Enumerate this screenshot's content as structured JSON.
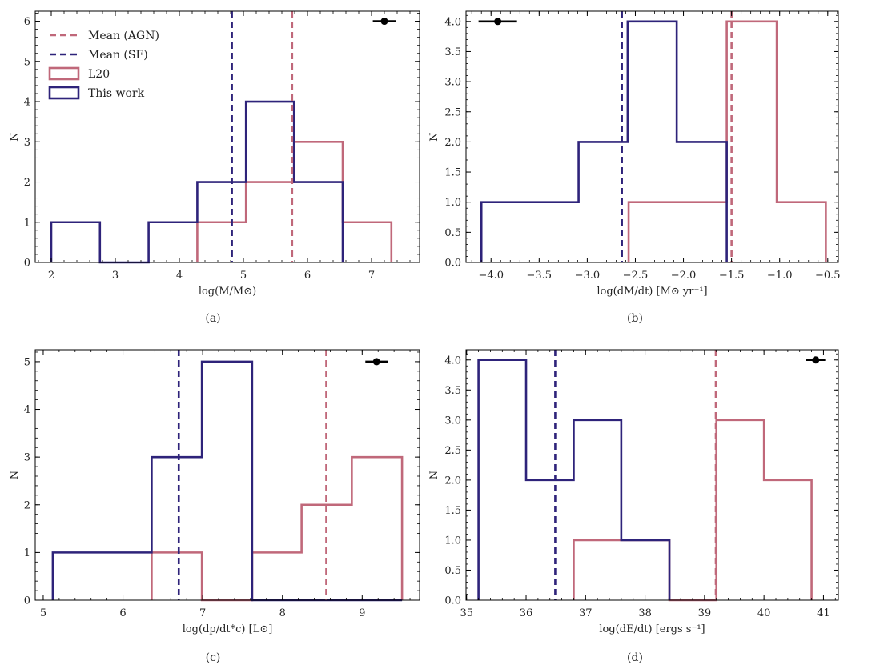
{
  "colors": {
    "agn": "#c0687a",
    "sf": "#2e237a",
    "marker": "#000000"
  },
  "legend": {
    "mean_agn": "Mean (AGN)",
    "mean_sf": "Mean (SF)",
    "l20": "L20",
    "this_work": "This work"
  },
  "chart_data": [
    {
      "type": "histogram",
      "panel": "(a)",
      "xlabel": "log(M/M⊙)",
      "ylabel": "N",
      "xlim": [
        1.75,
        7.75
      ],
      "ylim": [
        0,
        6.25
      ],
      "xticks": [
        2,
        3,
        4,
        5,
        6,
        7
      ],
      "yticks": [
        0,
        1,
        2,
        3,
        4,
        5,
        6
      ],
      "ytick_labels": [
        "0",
        "1",
        "2",
        "3",
        "4",
        "5",
        "6"
      ],
      "series": [
        {
          "name": "This work",
          "edges": [
            2.0,
            2.76,
            3.52,
            4.28,
            5.04,
            5.79,
            6.55
          ],
          "counts": [
            1,
            0,
            1,
            2,
            4,
            2
          ]
        },
        {
          "name": "L20",
          "edges": [
            4.28,
            5.04,
            5.79,
            6.55,
            7.31
          ],
          "counts": [
            1,
            2,
            3,
            1
          ]
        }
      ],
      "mean_lines": [
        {
          "name": "Mean (AGN)",
          "x": 5.76
        },
        {
          "name": "Mean (SF)",
          "x": 4.82
        }
      ],
      "errorbar": {
        "x": 7.2,
        "y": 6.0,
        "xerr": 0.18
      },
      "legend_position": "upper-left"
    },
    {
      "type": "histogram",
      "panel": "(b)",
      "xlabel": "log(dM/dt) [M⊙ yr⁻¹]",
      "ylabel": "N",
      "xlim": [
        -4.26,
        -0.39
      ],
      "ylim": [
        0,
        4.17
      ],
      "xticks": [
        -4.0,
        -3.5,
        -3.0,
        -2.5,
        -2.0,
        -1.5,
        -1.0,
        -0.5
      ],
      "xtick_labels": [
        "−4.0",
        "−3.5",
        "−3.0",
        "−2.5",
        "−2.0",
        "−1.5",
        "−1.0",
        "−0.5"
      ],
      "yticks": [
        0,
        0.5,
        1.0,
        1.5,
        2.0,
        2.5,
        3.0,
        3.5,
        4.0
      ],
      "ytick_labels": [
        "0.0",
        "0.5",
        "1.0",
        "1.5",
        "2.0",
        "2.5",
        "3.0",
        "3.5",
        "4.0"
      ],
      "series": [
        {
          "name": "This work",
          "edges": [
            -4.1,
            -3.09,
            -2.58,
            -2.07,
            -1.55
          ],
          "counts": [
            1,
            2,
            4,
            2
          ]
        },
        {
          "name": "L20",
          "edges": [
            -2.57,
            -1.55,
            -1.03,
            -0.52
          ],
          "counts": [
            1,
            4,
            1
          ]
        }
      ],
      "mean_lines": [
        {
          "name": "Mean (AGN)",
          "x": -1.5
        },
        {
          "name": "Mean (SF)",
          "x": -2.64
        }
      ],
      "errorbar": {
        "x": -3.93,
        "y": 4.0,
        "xerr": 0.2
      }
    },
    {
      "type": "histogram",
      "panel": "(c)",
      "xlabel": "log(dp/dt*c) [L⊙]",
      "ylabel": "N",
      "xlim": [
        4.9,
        9.72
      ],
      "ylim": [
        0,
        5.25
      ],
      "xticks": [
        5,
        6,
        7,
        8,
        9
      ],
      "yticks": [
        0,
        1,
        2,
        3,
        4,
        5
      ],
      "ytick_labels": [
        "0",
        "1",
        "2",
        "3",
        "4",
        "5"
      ],
      "series": [
        {
          "name": "This work",
          "edges": [
            5.12,
            6.36,
            6.99,
            7.62,
            9.5
          ],
          "counts": [
            1,
            3,
            5,
            0
          ]
        },
        {
          "name": "L20",
          "edges": [
            6.36,
            6.99,
            7.62,
            8.24,
            8.87,
            9.5
          ],
          "counts": [
            1,
            0,
            1,
            2,
            3
          ]
        }
      ],
      "mean_lines": [
        {
          "name": "Mean (AGN)",
          "x": 8.55
        },
        {
          "name": "Mean (SF)",
          "x": 6.7
        }
      ],
      "errorbar": {
        "x": 9.18,
        "y": 5.0,
        "xerr": 0.14
      }
    },
    {
      "type": "histogram",
      "panel": "(d)",
      "xlabel": "log(dE/dt) [ergs s⁻¹]",
      "ylabel": "N",
      "xlim": [
        34.99,
        41.25
      ],
      "ylim": [
        0,
        4.17
      ],
      "xticks": [
        35,
        36,
        37,
        38,
        39,
        40,
        41
      ],
      "yticks": [
        0,
        0.5,
        1.0,
        1.5,
        2.0,
        2.5,
        3.0,
        3.5,
        4.0
      ],
      "ytick_labels": [
        "0.0",
        "0.5",
        "1.0",
        "1.5",
        "2.0",
        "2.5",
        "3.0",
        "3.5",
        "4.0"
      ],
      "series": [
        {
          "name": "This work",
          "edges": [
            35.2,
            36.0,
            36.8,
            37.6,
            38.41
          ],
          "counts": [
            4,
            2,
            3,
            1
          ]
        },
        {
          "name": "L20",
          "edges": [
            36.8,
            37.6,
            38.41,
            39.2,
            40.0,
            40.8
          ],
          "counts": [
            1,
            1,
            0,
            3,
            2
          ]
        }
      ],
      "mean_lines": [
        {
          "name": "Mean (AGN)",
          "x": 39.19
        },
        {
          "name": "Mean (SF)",
          "x": 36.49
        }
      ],
      "errorbar": {
        "x": 40.87,
        "y": 4.0,
        "xerr": 0.16
      }
    }
  ]
}
